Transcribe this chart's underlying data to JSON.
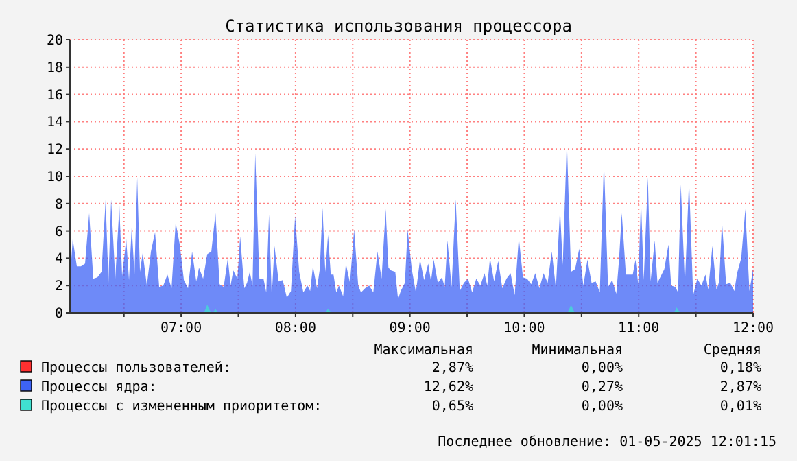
{
  "chart_data": {
    "type": "area",
    "title": "Статистика использования процессора",
    "xlim": [
      6.028,
      12.0
    ],
    "xticks": [
      {
        "value": 6.5,
        "label": null
      },
      {
        "value": 7,
        "label": "07:00"
      },
      {
        "value": 7.5,
        "label": null
      },
      {
        "value": 8,
        "label": "08:00"
      },
      {
        "value": 8.5,
        "label": null
      },
      {
        "value": 9,
        "label": "09:00"
      },
      {
        "value": 9.5,
        "label": null
      },
      {
        "value": 10,
        "label": "10:00"
      },
      {
        "value": 10.5,
        "label": null
      },
      {
        "value": 11,
        "label": "11:00"
      },
      {
        "value": 11.5,
        "label": null
      },
      {
        "value": 12,
        "label": "12:00"
      }
    ],
    "ylim": [
      0,
      20
    ],
    "yticks": [
      0,
      2,
      4,
      6,
      8,
      10,
      12,
      14,
      16,
      18,
      20
    ],
    "grid": true,
    "legend": "bottom left",
    "series": [
      {
        "name": "Процессы пользователей:",
        "color": "#ff3030"
      },
      {
        "name": "Процессы ядра:",
        "color": "#3d63f5",
        "x": [
          6.028,
          6.052,
          6.088,
          6.124,
          6.16,
          6.196,
          6.232,
          6.268,
          6.304,
          6.34,
          6.364,
          6.388,
          6.424,
          6.46,
          6.484,
          6.52,
          6.544,
          6.568,
          6.592,
          6.616,
          6.64,
          6.664,
          6.7,
          6.736,
          6.772,
          6.808,
          6.844,
          6.88,
          6.916,
          6.952,
          6.988,
          7.024,
          7.06,
          7.096,
          7.132,
          7.156,
          7.192,
          7.228,
          7.264,
          7.3,
          7.336,
          7.372,
          7.408,
          7.432,
          7.456,
          7.492,
          7.516,
          7.552,
          7.576,
          7.6,
          7.624,
          7.648,
          7.684,
          7.72,
          7.744,
          7.768,
          7.792,
          7.816,
          7.852,
          7.888,
          7.924,
          7.96,
          7.996,
          8.032,
          8.068,
          8.104,
          8.128,
          8.152,
          8.188,
          8.212,
          8.236,
          8.26,
          8.284,
          8.308,
          8.332,
          8.356,
          8.38,
          8.416,
          8.44,
          8.476,
          8.512,
          8.548,
          8.572,
          8.608,
          8.644,
          8.68,
          8.716,
          8.752,
          8.788,
          8.812,
          8.836,
          8.872,
          8.896,
          8.92,
          8.956,
          8.98,
          9.016,
          9.052,
          9.088,
          9.124,
          9.16,
          9.184,
          9.208,
          9.244,
          9.28,
          9.304,
          9.328,
          9.364,
          9.4,
          9.436,
          9.472,
          9.508,
          9.544,
          9.58,
          9.616,
          9.652,
          9.676,
          9.7,
          9.736,
          9.772,
          9.808,
          9.844,
          9.88,
          9.916,
          9.952,
          9.988,
          10.024,
          10.06,
          10.096,
          10.132,
          10.168,
          10.204,
          10.24,
          10.276,
          10.312,
          10.336,
          10.372,
          10.408,
          10.444,
          10.48,
          10.516,
          10.552,
          10.588,
          10.624,
          10.66,
          10.696,
          10.732,
          10.768,
          10.804,
          10.828,
          10.852,
          10.888,
          10.924,
          10.948,
          10.972,
          10.996,
          11.02,
          11.044,
          11.08,
          11.104,
          11.14,
          11.164,
          11.2,
          11.224,
          11.26,
          11.284,
          11.32,
          11.344,
          11.368,
          11.404,
          11.44,
          11.476,
          11.512,
          11.548,
          11.584,
          11.608,
          11.644,
          11.68,
          11.704,
          11.728,
          11.764,
          11.8,
          11.836,
          11.86,
          11.896,
          11.932,
          11.968,
          12.0
        ],
        "values": [
          2.5,
          5.4,
          3.4,
          3.4,
          3.6,
          7.3,
          2.5,
          2.6,
          3.0,
          8.3,
          2.2,
          8.3,
          2.5,
          7.8,
          2.7,
          5.4,
          2.4,
          6.3,
          2.8,
          9.9,
          3.0,
          4.4,
          2.0,
          4.5,
          5.9,
          1.9,
          2.0,
          2.8,
          1.8,
          6.6,
          5.0,
          2.4,
          1.8,
          4.5,
          2.3,
          3.3,
          2.5,
          4.3,
          4.5,
          7.3,
          2.1,
          1.9,
          4.0,
          2.0,
          3.1,
          2.5,
          5.6,
          1.8,
          2.2,
          3.0,
          2.0,
          11.7,
          2.5,
          2.5,
          1.5,
          7.2,
          1.2,
          4.9,
          2.3,
          2.4,
          1.1,
          1.6,
          7.1,
          3.0,
          1.5,
          2.0,
          1.6,
          3.4,
          1.8,
          3.2,
          7.7,
          3.0,
          5.7,
          2.8,
          2.8,
          1.5,
          2.0,
          1.2,
          3.6,
          2.2,
          6.1,
          2.0,
          1.5,
          1.8,
          2.0,
          1.5,
          4.5,
          2.5,
          7.6,
          3.3,
          3.1,
          3.0,
          1.0,
          1.6,
          2.2,
          6.1,
          3.2,
          1.5,
          3.9,
          2.4,
          3.6,
          2.3,
          3.9,
          2.2,
          2.6,
          1.9,
          5.3,
          1.9,
          8.3,
          1.6,
          2.2,
          2.5,
          1.5,
          2.5,
          2.0,
          2.9,
          2.0,
          4.0,
          2.3,
          3.8,
          1.8,
          2.5,
          2.9,
          1.3,
          5.5,
          2.6,
          2.5,
          2.1,
          2.9,
          1.8,
          2.9,
          2.2,
          4.5,
          1.8,
          7.6,
          3.5,
          12.6,
          3.0,
          3.2,
          4.7,
          2.0,
          3.9,
          2.2,
          2.3,
          1.5,
          11.1,
          1.9,
          2.4,
          1.4,
          3.9,
          7.3,
          2.8,
          2.8,
          2.8,
          3.9,
          2.1,
          8.3,
          2.4,
          9.9,
          2.3,
          5.3,
          2.2,
          2.8,
          3.2,
          5.0,
          2.0,
          1.9,
          1.5,
          9.4,
          2.1,
          9.7,
          1.3,
          2.5,
          2.0,
          2.8,
          1.7,
          4.9,
          1.7,
          2.3,
          6.7,
          2.1,
          2.2,
          1.6,
          2.9,
          4.0,
          7.6,
          1.6,
          3.2
        ]
      },
      {
        "name": "Процессы с измененным приоритетом:",
        "color": "#40e0d0",
        "x": [
          6.028,
          7.2,
          7.228,
          7.26,
          7.28,
          7.3,
          7.32,
          8.26,
          8.284,
          8.31,
          10.38,
          10.408,
          10.44,
          11.31,
          11.332,
          11.36,
          12.0
        ],
        "values": [
          0,
          0,
          0.6,
          0,
          0,
          0.3,
          0,
          0,
          0.3,
          0,
          0,
          0.6,
          0,
          0,
          0.4,
          0,
          0
        ]
      }
    ],
    "annotations": [
      "Максимальная",
      "Минимальная",
      "Средняя",
      "2,87%",
      "0,00%",
      "0,18%",
      "12,62%",
      "0,27%",
      "2,87%",
      "0,65%",
      "0,00%",
      "0,01%",
      "Последнее обновление: 01-05-2025 12:01:15"
    ]
  }
}
